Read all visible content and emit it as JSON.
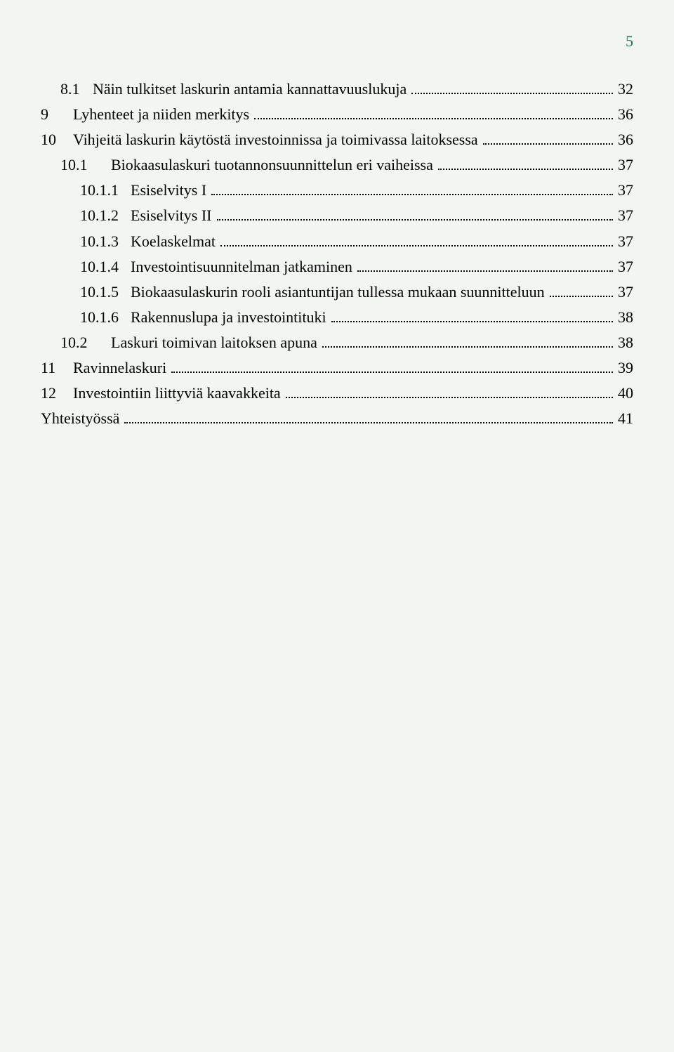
{
  "page_number": "5",
  "colors": {
    "page_number_color": "#1a7a4a",
    "text_color": "#000000",
    "background": "#f3f5f3",
    "dot_leader_color": "#000000"
  },
  "typography": {
    "font_family": "Times New Roman",
    "body_fontsize_pt": 16,
    "page_number_fontsize_pt": 16
  },
  "toc": [
    {
      "indent": 1,
      "num_class": "num",
      "number": "8.1",
      "title": "Näin tulkitset laskurin antamia kannattavuuslukuja",
      "page": "32"
    },
    {
      "indent": 0,
      "num_class": "num",
      "number": "9",
      "title": "Lyhenteet ja niiden merkitys",
      "page": "36"
    },
    {
      "indent": 0,
      "num_class": "num",
      "number": "10",
      "title": "Vihjeitä laskurin käytöstä investoinnissa ja toimivassa laitoksessa",
      "page": "36"
    },
    {
      "indent": 1,
      "num_class": "num-wide",
      "number": "10.1",
      "title": "Biokaasulaskuri tuotannonsuunnittelun eri vaiheissa",
      "page": "37"
    },
    {
      "indent": 2,
      "num_class": "num-wide",
      "number": "10.1.1",
      "title": "Esiselvitys I",
      "page": "37"
    },
    {
      "indent": 2,
      "num_class": "num-wide",
      "number": "10.1.2",
      "title": "Esiselvitys II",
      "page": "37"
    },
    {
      "indent": 2,
      "num_class": "num-wide",
      "number": "10.1.3",
      "title": "Koelaskelmat",
      "page": "37"
    },
    {
      "indent": 2,
      "num_class": "num-wide",
      "number": "10.1.4",
      "title": "Investointisuunnitelman jatkaminen",
      "page": "37"
    },
    {
      "indent": 2,
      "num_class": "num-wide",
      "number": "10.1.5",
      "title": "Biokaasulaskurin rooli asiantuntijan tullessa mukaan suunnitteluun",
      "page": "37"
    },
    {
      "indent": 2,
      "num_class": "num-wide",
      "number": "10.1.6",
      "title": "Rakennuslupa ja investointituki",
      "page": "38"
    },
    {
      "indent": 1,
      "num_class": "num-wide",
      "number": "10.2",
      "title": "Laskuri toimivan laitoksen apuna",
      "page": "38"
    },
    {
      "indent": 0,
      "num_class": "num",
      "number": "11",
      "title": "Ravinnelaskuri",
      "page": "39"
    },
    {
      "indent": 0,
      "num_class": "num",
      "number": "12",
      "title": "Investointiin liittyviä kaavakkeita",
      "page": "40"
    },
    {
      "indent": 0,
      "num_class": "",
      "number": "",
      "title": "Yhteistyössä",
      "page": "41"
    }
  ]
}
